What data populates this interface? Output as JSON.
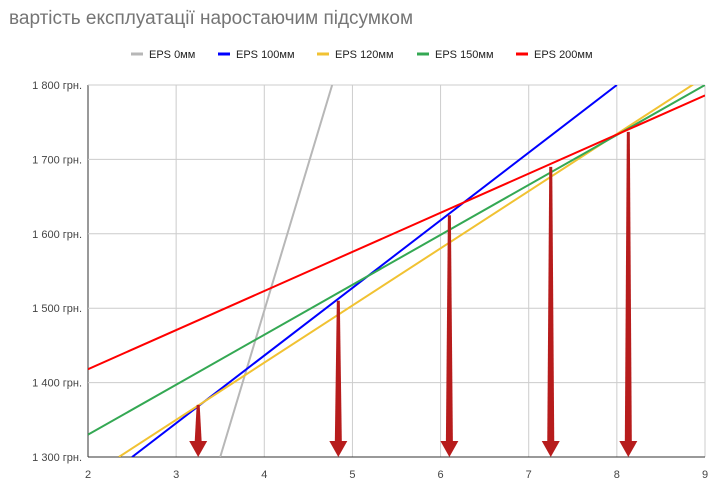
{
  "chart_data": {
    "type": "line",
    "title": "вартість експлуатації наростаючим підсумком",
    "xlabel": "",
    "ylabel": "",
    "xlim": [
      2,
      9
    ],
    "ylim": [
      1300,
      1800
    ],
    "x_ticks": [
      "2",
      "3",
      "4",
      "5",
      "6",
      "7",
      "8",
      "9"
    ],
    "y_ticks": [
      "1 300 грн.",
      "1 400 грн.",
      "1 500 грн.",
      "1 600 грн.",
      "1 700 грн.",
      "1 800 грн."
    ],
    "grid": true,
    "legend_position": "top",
    "series": [
      {
        "name": "EPS 0мм",
        "color": "#b7b7b7",
        "x": [
          3.5,
          4.77
        ],
        "y": [
          1300,
          1800
        ]
      },
      {
        "name": "EPS 100мм",
        "color": "#0000ff",
        "x": [
          2.5,
          8.0
        ],
        "y": [
          1300,
          1800
        ]
      },
      {
        "name": "EPS 120мм",
        "color": "#f1c232",
        "x": [
          2.35,
          9.0
        ],
        "y": [
          1300,
          1811
        ]
      },
      {
        "name": "EPS 150мм",
        "color": "#34a853",
        "x": [
          2.0,
          9.0
        ],
        "y": [
          1330,
          1800
        ]
      },
      {
        "name": "EPS 200мм",
        "color": "#ff0000",
        "x": [
          2.0,
          9.0
        ],
        "y": [
          1418,
          1786
        ]
      }
    ],
    "annotations": {
      "arrow_color": "#b71c1c",
      "arrows": [
        {
          "x": 3.25,
          "y": 1370
        },
        {
          "x": 4.84,
          "y": 1510
        },
        {
          "x": 6.1,
          "y": 1625
        },
        {
          "x": 7.25,
          "y": 1690
        },
        {
          "x": 8.13,
          "y": 1737
        }
      ]
    }
  }
}
